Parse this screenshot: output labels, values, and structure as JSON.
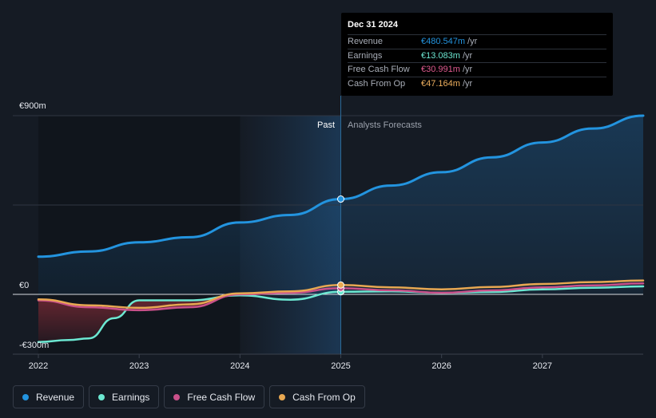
{
  "tooltip": {
    "date": "Dec 31 2024",
    "rows": [
      {
        "label": "Revenue",
        "value": "€480.547m",
        "unit": "/yr",
        "color": "#2394df"
      },
      {
        "label": "Earnings",
        "value": "€13.083m",
        "unit": "/yr",
        "color": "#6ce8d2"
      },
      {
        "label": "Free Cash Flow",
        "value": "€30.991m",
        "unit": "/yr",
        "color": "#e05a8f"
      },
      {
        "label": "Cash From Op",
        "value": "€47.164m",
        "unit": "/yr",
        "color": "#f0b15f"
      }
    ]
  },
  "legend": [
    {
      "label": "Revenue",
      "color": "#2394df"
    },
    {
      "label": "Earnings",
      "color": "#6ce8d2"
    },
    {
      "label": "Free Cash Flow",
      "color": "#c9508a"
    },
    {
      "label": "Cash From Op",
      "color": "#e8a852"
    }
  ],
  "chart_data": {
    "type": "line",
    "y_tick_labels": [
      "€900m",
      "€0",
      "-€300m"
    ],
    "x_tick_labels": [
      "2022",
      "2023",
      "2024",
      "2025",
      "2026",
      "2027"
    ],
    "past_label": "Past",
    "forecast_label": "Analysts Forecasts",
    "ylim": [
      -300,
      900
    ],
    "xlim": [
      2022,
      2028
    ],
    "past_end": 2025,
    "series": [
      {
        "name": "Revenue",
        "color": "#2394df",
        "x": [
          2022,
          2022.5,
          2023,
          2023.5,
          2024,
          2024.5,
          2025,
          2025.5,
          2026,
          2026.5,
          2027,
          2027.5,
          2028
        ],
        "y": [
          190,
          216,
          262,
          288,
          362,
          400,
          480,
          548,
          615,
          690,
          765,
          835,
          900
        ]
      },
      {
        "name": "Earnings",
        "color": "#6ce8d2",
        "x": [
          2022,
          2022.3,
          2022.5,
          2022.75,
          2023,
          2023.5,
          2024,
          2024.5,
          2025,
          2025.5,
          2026,
          2026.5,
          2027,
          2027.5,
          2028
        ],
        "y": [
          -240,
          -230,
          -222,
          -120,
          -30,
          -30,
          -5,
          -27,
          13,
          15,
          8,
          12,
          25,
          33,
          40
        ]
      },
      {
        "name": "Free Cash Flow",
        "color": "#c9508a",
        "x": [
          2022,
          2022.5,
          2023,
          2023.5,
          2024,
          2024.5,
          2025,
          2025.5,
          2026,
          2026.5,
          2027,
          2027.5,
          2028
        ],
        "y": [
          -30,
          -65,
          -80,
          -65,
          0,
          8,
          31,
          20,
          8,
          20,
          35,
          45,
          55
        ]
      },
      {
        "name": "Cash From Op",
        "color": "#e8a852",
        "x": [
          2022,
          2022.5,
          2023,
          2023.5,
          2024,
          2024.5,
          2025,
          2025.5,
          2026,
          2026.5,
          2027,
          2027.5,
          2028
        ],
        "y": [
          -25,
          -55,
          -68,
          -50,
          5,
          15,
          47,
          35,
          25,
          37,
          52,
          62,
          70
        ]
      }
    ]
  }
}
